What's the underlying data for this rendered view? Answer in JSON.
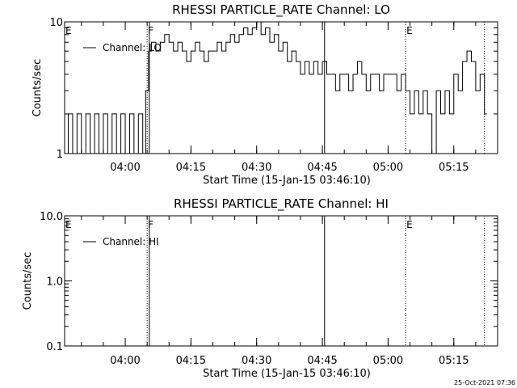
{
  "footer": {
    "timestamp": "25-Oct-2021 07:36"
  },
  "chart_data": [
    {
      "type": "line",
      "title": "RHESSI PARTICLE_RATE Channel: LO",
      "xlabel": "Start Time (15-Jan-15 03:46:10)",
      "ylabel": "Counts/sec",
      "yscale": "log",
      "ylim": [
        1,
        10
      ],
      "xlim": [
        "03:46:10",
        "05:25:00"
      ],
      "y_tick_labels": [
        "1",
        "10"
      ],
      "x_tick_labels": [
        "04:00",
        "04:15",
        "04:30",
        "04:45",
        "05:00",
        "05:15"
      ],
      "legend": {
        "entries": [
          "Channel: LO"
        ],
        "position": "top-left"
      },
      "markers": [
        {
          "label": "E",
          "time": "03:46:10",
          "style": "dotted"
        },
        {
          "label": "F",
          "time": "04:05:00",
          "style": "dotted"
        },
        {
          "label": "",
          "time": "04:05:30",
          "style": "solid"
        },
        {
          "label": "",
          "time": "04:45:30",
          "style": "solid"
        },
        {
          "label": "E",
          "time": "05:04:00",
          "style": "dotted"
        },
        {
          "label": "",
          "time": "05:22:00",
          "style": "dotted"
        }
      ],
      "series": [
        {
          "name": "Channel: LO",
          "points": [
            [
              "03:46:10",
              1
            ],
            [
              "03:47:00",
              2
            ],
            [
              "03:48:00",
              1
            ],
            [
              "03:49:00",
              2
            ],
            [
              "03:50:00",
              1
            ],
            [
              "03:51:00",
              2
            ],
            [
              "03:52:00",
              1
            ],
            [
              "03:53:00",
              2
            ],
            [
              "03:54:00",
              1
            ],
            [
              "03:55:00",
              2
            ],
            [
              "03:56:00",
              1
            ],
            [
              "03:57:00",
              2
            ],
            [
              "03:58:00",
              1
            ],
            [
              "03:59:00",
              2
            ],
            [
              "04:00:00",
              1
            ],
            [
              "04:01:00",
              2
            ],
            [
              "04:02:00",
              1
            ],
            [
              "04:03:00",
              2
            ],
            [
              "04:04:00",
              1
            ],
            [
              "04:04:40",
              3
            ],
            [
              "04:05:20",
              6
            ],
            [
              "04:06:00",
              7
            ],
            [
              "04:07:00",
              6
            ],
            [
              "04:08:00",
              7
            ],
            [
              "04:09:00",
              8
            ],
            [
              "04:10:00",
              7
            ],
            [
              "04:11:00",
              6
            ],
            [
              "04:12:00",
              7
            ],
            [
              "04:13:00",
              6
            ],
            [
              "04:14:00",
              5
            ],
            [
              "04:15:00",
              6
            ],
            [
              "04:16:00",
              7
            ],
            [
              "04:17:00",
              6
            ],
            [
              "04:18:00",
              5
            ],
            [
              "04:19:00",
              6
            ],
            [
              "04:20:00",
              6
            ],
            [
              "04:21:00",
              7
            ],
            [
              "04:22:00",
              6
            ],
            [
              "04:23:00",
              7
            ],
            [
              "04:24:00",
              8
            ],
            [
              "04:25:00",
              7
            ],
            [
              "04:26:00",
              8
            ],
            [
              "04:27:00",
              9
            ],
            [
              "04:28:00",
              8
            ],
            [
              "04:29:00",
              9
            ],
            [
              "04:30:00",
              10
            ],
            [
              "04:31:00",
              8
            ],
            [
              "04:32:00",
              9
            ],
            [
              "04:33:00",
              7
            ],
            [
              "04:34:00",
              8
            ],
            [
              "04:35:00",
              6
            ],
            [
              "04:36:00",
              7
            ],
            [
              "04:37:00",
              5
            ],
            [
              "04:38:00",
              6
            ],
            [
              "04:39:00",
              5
            ],
            [
              "04:40:00",
              4
            ],
            [
              "04:41:00",
              5
            ],
            [
              "04:42:00",
              4
            ],
            [
              "04:43:00",
              5
            ],
            [
              "04:44:00",
              4
            ],
            [
              "04:45:00",
              5
            ],
            [
              "04:46:00",
              4
            ],
            [
              "04:47:00",
              4
            ],
            [
              "04:48:00",
              3
            ],
            [
              "04:49:00",
              4
            ],
            [
              "04:50:00",
              4
            ],
            [
              "04:51:00",
              3
            ],
            [
              "04:52:00",
              4
            ],
            [
              "04:53:00",
              5
            ],
            [
              "04:54:00",
              4
            ],
            [
              "04:55:00",
              3
            ],
            [
              "04:56:00",
              4
            ],
            [
              "04:57:00",
              4
            ],
            [
              "04:58:00",
              3
            ],
            [
              "04:59:00",
              4
            ],
            [
              "05:00:00",
              4
            ],
            [
              "05:01:00",
              4
            ],
            [
              "05:02:00",
              3
            ],
            [
              "05:03:00",
              4
            ],
            [
              "05:04:00",
              3
            ],
            [
              "05:05:00",
              2
            ],
            [
              "05:06:00",
              3
            ],
            [
              "05:07:00",
              2
            ],
            [
              "05:08:00",
              3
            ],
            [
              "05:09:00",
              2
            ],
            [
              "05:10:00",
              1
            ],
            [
              "05:11:00",
              3
            ],
            [
              "05:12:00",
              2
            ],
            [
              "05:13:00",
              3
            ],
            [
              "05:14:00",
              2
            ],
            [
              "05:15:00",
              4
            ],
            [
              "05:16:00",
              3
            ],
            [
              "05:17:00",
              5
            ],
            [
              "05:18:00",
              6
            ],
            [
              "05:19:00",
              5
            ],
            [
              "05:20:00",
              3
            ],
            [
              "05:21:00",
              4
            ],
            [
              "05:22:00",
              2
            ]
          ]
        }
      ]
    },
    {
      "type": "line",
      "title": "RHESSI PARTICLE_RATE Channel: HI",
      "xlabel": "Start Time (15-Jan-15 03:46:10)",
      "ylabel": "Counts/sec",
      "yscale": "log",
      "ylim": [
        0.1,
        10
      ],
      "xlim": [
        "03:46:10",
        "05:25:00"
      ],
      "y_tick_labels": [
        "0.1",
        "1.0",
        "10.0"
      ],
      "x_tick_labels": [
        "04:00",
        "04:15",
        "04:30",
        "04:45",
        "05:00",
        "05:15"
      ],
      "legend": {
        "entries": [
          "Channel: HI"
        ],
        "position": "top-left"
      },
      "markers": [
        {
          "label": "E",
          "time": "03:46:10",
          "style": "dotted"
        },
        {
          "label": "F",
          "time": "04:05:00",
          "style": "dotted"
        },
        {
          "label": "",
          "time": "04:05:30",
          "style": "solid"
        },
        {
          "label": "",
          "time": "04:45:30",
          "style": "solid"
        },
        {
          "label": "E",
          "time": "05:04:00",
          "style": "dotted"
        },
        {
          "label": "",
          "time": "05:22:00",
          "style": "dotted"
        }
      ],
      "series": [
        {
          "name": "Channel: HI",
          "points": []
        }
      ]
    }
  ]
}
